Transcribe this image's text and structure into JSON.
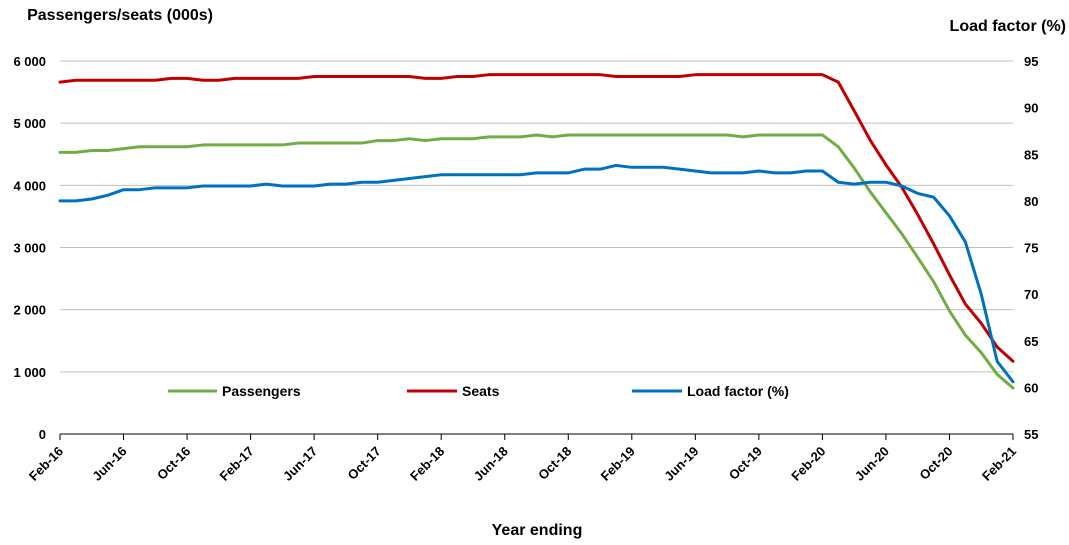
{
  "chart_data": {
    "type": "line",
    "left_axis": {
      "title": "Passengers/seats (000s)",
      "ylim": [
        0,
        6000
      ],
      "ticks": [
        0,
        1000,
        2000,
        3000,
        4000,
        5000,
        6000
      ],
      "tick_labels": [
        "0",
        "1 000",
        "2 000",
        "3 000",
        "4 000",
        "5 000",
        "6 000"
      ]
    },
    "right_axis": {
      "title": "Load factor (%)",
      "ylim": [
        55,
        95
      ],
      "ticks": [
        55,
        60,
        65,
        70,
        75,
        80,
        85,
        90,
        95
      ],
      "tick_labels": [
        "55",
        "60",
        "65",
        "70",
        "75",
        "80",
        "85",
        "90",
        "95"
      ]
    },
    "xlabel": "Year ending",
    "x_tick_labels": [
      "Feb-16",
      "Jun-16",
      "Oct-16",
      "Feb-17",
      "Jun-17",
      "Oct-17",
      "Feb-18",
      "Jun-18",
      "Oct-18",
      "Feb-19",
      "Jun-19",
      "Oct-19",
      "Feb-20",
      "Jun-20",
      "Oct-20",
      "Feb-21"
    ],
    "grid": "horizontal",
    "legend_position": "bottom-inside",
    "x": [
      "Feb-16",
      "Mar-16",
      "Apr-16",
      "May-16",
      "Jun-16",
      "Jul-16",
      "Aug-16",
      "Sep-16",
      "Oct-16",
      "Nov-16",
      "Dec-16",
      "Jan-17",
      "Feb-17",
      "Mar-17",
      "Apr-17",
      "May-17",
      "Jun-17",
      "Jul-17",
      "Aug-17",
      "Sep-17",
      "Oct-17",
      "Nov-17",
      "Dec-17",
      "Jan-18",
      "Feb-18",
      "Mar-18",
      "Apr-18",
      "May-18",
      "Jun-18",
      "Jul-18",
      "Aug-18",
      "Sep-18",
      "Oct-18",
      "Nov-18",
      "Dec-18",
      "Jan-19",
      "Feb-19",
      "Mar-19",
      "Apr-19",
      "May-19",
      "Jun-19",
      "Jul-19",
      "Aug-19",
      "Sep-19",
      "Oct-19",
      "Nov-19",
      "Dec-19",
      "Jan-20",
      "Feb-20",
      "Mar-20",
      "Apr-20",
      "May-20",
      "Jun-20",
      "Jul-20",
      "Aug-20",
      "Sep-20",
      "Oct-20",
      "Nov-20",
      "Dec-20",
      "Jan-21",
      "Feb-21"
    ],
    "series": [
      {
        "name": "Passengers",
        "axis": "left",
        "color": "#70AD47",
        "values": [
          4530,
          4530,
          4560,
          4560,
          4590,
          4620,
          4620,
          4620,
          4620,
          4650,
          4650,
          4650,
          4650,
          4650,
          4650,
          4680,
          4680,
          4680,
          4680,
          4680,
          4720,
          4720,
          4750,
          4720,
          4750,
          4750,
          4750,
          4780,
          4780,
          4780,
          4810,
          4780,
          4810,
          4810,
          4810,
          4810,
          4810,
          4810,
          4810,
          4810,
          4810,
          4810,
          4810,
          4780,
          4810,
          4810,
          4810,
          4810,
          4810,
          4620,
          4280,
          3900,
          3560,
          3220,
          2840,
          2450,
          1980,
          1590,
          1310,
          960,
          740
        ]
      },
      {
        "name": "Seats",
        "axis": "left",
        "color": "#C00000",
        "values": [
          5660,
          5690,
          5690,
          5690,
          5690,
          5690,
          5690,
          5720,
          5720,
          5690,
          5690,
          5720,
          5720,
          5720,
          5720,
          5720,
          5750,
          5750,
          5750,
          5750,
          5750,
          5750,
          5750,
          5720,
          5720,
          5750,
          5750,
          5780,
          5780,
          5780,
          5780,
          5780,
          5780,
          5780,
          5780,
          5750,
          5750,
          5750,
          5750,
          5750,
          5780,
          5780,
          5780,
          5780,
          5780,
          5780,
          5780,
          5780,
          5780,
          5660,
          5200,
          4730,
          4330,
          3970,
          3530,
          3060,
          2560,
          2090,
          1780,
          1400,
          1170
        ]
      },
      {
        "name": "Load factor (%)",
        "axis": "right",
        "color": "#0070C0",
        "values": [
          80.0,
          80.0,
          80.2,
          80.6,
          81.2,
          81.2,
          81.4,
          81.4,
          81.4,
          81.6,
          81.6,
          81.6,
          81.6,
          81.8,
          81.6,
          81.6,
          81.6,
          81.8,
          81.8,
          82.0,
          82.0,
          82.2,
          82.4,
          82.6,
          82.8,
          82.8,
          82.8,
          82.8,
          82.8,
          82.8,
          83.0,
          83.0,
          83.0,
          83.4,
          83.4,
          83.8,
          83.6,
          83.6,
          83.6,
          83.4,
          83.2,
          83.0,
          83.0,
          83.0,
          83.2,
          83.0,
          83.0,
          83.2,
          83.2,
          82.0,
          81.8,
          82.0,
          82.0,
          81.6,
          80.8,
          80.4,
          78.4,
          75.6,
          70.0,
          62.8,
          60.6
        ]
      }
    ]
  }
}
